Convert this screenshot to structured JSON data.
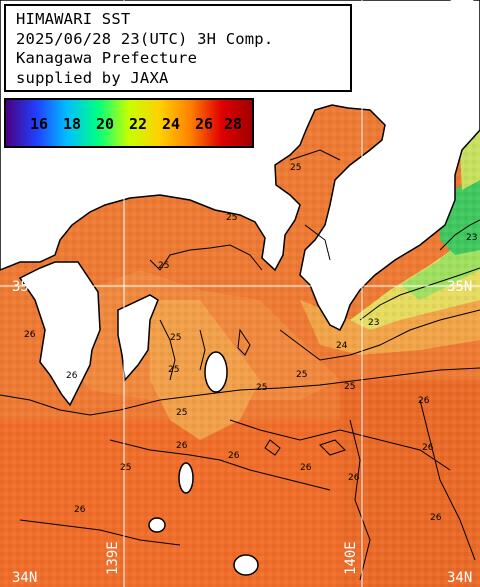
{
  "info": {
    "line1": "HIMAWARI SST",
    "line2": "2025/06/28 23(UTC) 3H Comp.",
    "line3": "Kanagawa Prefecture",
    "line4": "supplied by JAXA"
  },
  "colorbar": {
    "labels": [
      "16",
      "18",
      "20",
      "22",
      "24",
      "26",
      "28"
    ],
    "colors": [
      "#4b0082",
      "#2040ff",
      "#00c0ff",
      "#00ff80",
      "#c8ff00",
      "#ffd000",
      "#ff8000",
      "#e00000",
      "#a00000"
    ]
  },
  "grid": {
    "lat_labels": [
      "35N",
      "35N",
      "34N",
      "34N"
    ],
    "lon_labels": [
      "139E",
      "140E"
    ]
  },
  "contours": {
    "labels": [
      "25",
      "25",
      "25",
      "25",
      "25",
      "25",
      "25",
      "26",
      "26",
      "26",
      "26",
      "26",
      "26",
      "26",
      "26",
      "24",
      "23",
      "23",
      "25",
      "26",
      "25",
      "25",
      "26"
    ]
  },
  "colors": {
    "sea_main": "#ee7a34",
    "sea_warm": "#f06e2a",
    "sea_bay": "#f0873e",
    "sea_cool": "#f5a848",
    "sea_yellow": "#e8e060",
    "sea_green": "#98e060",
    "sea_cold": "#30c060",
    "land": "#ffffff",
    "grid": "#ffffff"
  }
}
